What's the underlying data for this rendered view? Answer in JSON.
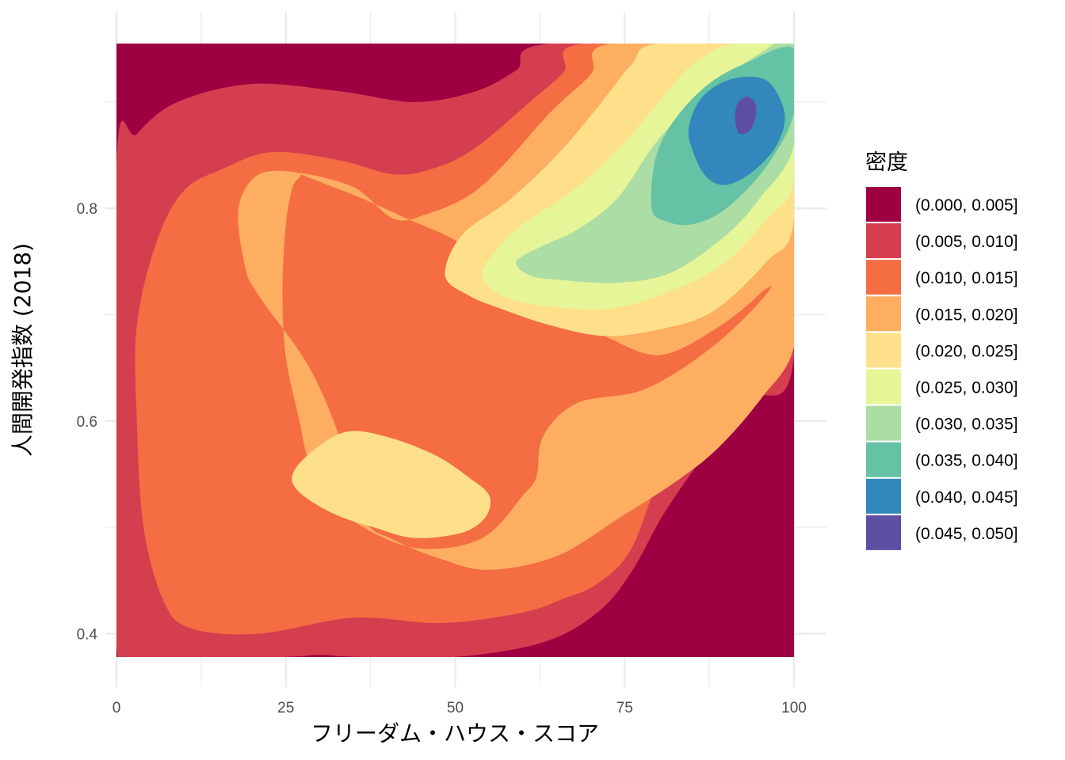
{
  "chart_data": {
    "type": "heatmap",
    "subtype": "filled-density-contour",
    "xlabel": "フリーダム・ハウス・スコア",
    "ylabel": "人間開発指数 (2018)",
    "xlim": [
      0,
      100
    ],
    "ylim": [
      0.378,
      0.955
    ],
    "x_ticks": [
      {
        "value": 0,
        "label": "0"
      },
      {
        "value": 25,
        "label": "25"
      },
      {
        "value": 50,
        "label": "50"
      },
      {
        "value": 75,
        "label": "75"
      },
      {
        "value": 100,
        "label": "100"
      }
    ],
    "y_ticks": [
      {
        "value": 0.4,
        "label": "0.4"
      },
      {
        "value": 0.6,
        "label": "0.6"
      },
      {
        "value": 0.8,
        "label": "0.8"
      }
    ],
    "x_minor_gridlines": [
      12.5,
      37.5,
      62.5,
      87.5
    ],
    "y_minor_gridlines": [
      0.5,
      0.7,
      0.9
    ],
    "grid": true,
    "legend": {
      "title": "密度",
      "position": "right",
      "bins": [
        {
          "label": "(0.000, 0.005]",
          "color": "#9E0142"
        },
        {
          "label": "(0.005, 0.010]",
          "color": "#D53E4F"
        },
        {
          "label": "(0.010, 0.015]",
          "color": "#F46D43"
        },
        {
          "label": "(0.015, 0.020]",
          "color": "#FDAE61"
        },
        {
          "label": "(0.020, 0.025]",
          "color": "#FEE08B"
        },
        {
          "label": "(0.025, 0.030]",
          "color": "#E6F598"
        },
        {
          "label": "(0.030, 0.035]",
          "color": "#ABDDA4"
        },
        {
          "label": "(0.035, 0.040]",
          "color": "#66C2A5"
        },
        {
          "label": "(0.040, 0.045]",
          "color": "#3288BD"
        },
        {
          "label": "(0.045, 0.050]",
          "color": "#5E4FA2"
        }
      ]
    },
    "regions": [
      {
        "level": 0,
        "points": [
          [
            0,
            0.955
          ],
          [
            100,
            0.955
          ],
          [
            100,
            0.378
          ],
          [
            0,
            0.378
          ]
        ]
      },
      {
        "level": 1,
        "points": [
          [
            0,
            0.84
          ],
          [
            3,
            0.87
          ],
          [
            9,
            0.9
          ],
          [
            20,
            0.917
          ],
          [
            33,
            0.91
          ],
          [
            44,
            0.9
          ],
          [
            53,
            0.91
          ],
          [
            59,
            0.93
          ],
          [
            64,
            0.955
          ],
          [
            100,
            0.955
          ],
          [
            100,
            0.66
          ],
          [
            94,
            0.62
          ],
          [
            88,
            0.578
          ],
          [
            81,
            0.515
          ],
          [
            76,
            0.458
          ],
          [
            71,
            0.42
          ],
          [
            63,
            0.392
          ],
          [
            50,
            0.378
          ],
          [
            36,
            0.378
          ],
          [
            30,
            0.38
          ],
          [
            24,
            0.378
          ],
          [
            6,
            0.378
          ],
          [
            0,
            0.39
          ]
        ]
      },
      {
        "level": 2,
        "points": [
          [
            10,
            0.817
          ],
          [
            16,
            0.838
          ],
          [
            23,
            0.853
          ],
          [
            33,
            0.845
          ],
          [
            41,
            0.832
          ],
          [
            47,
            0.838
          ],
          [
            53,
            0.857
          ],
          [
            61,
            0.9
          ],
          [
            66,
            0.928
          ],
          [
            69,
            0.955
          ],
          [
            100,
            0.955
          ],
          [
            100,
            0.715
          ],
          [
            95,
            0.66
          ],
          [
            87,
            0.607
          ],
          [
            81,
            0.56
          ],
          [
            76,
            0.48
          ],
          [
            71,
            0.447
          ],
          [
            66,
            0.433
          ],
          [
            60,
            0.42
          ],
          [
            48,
            0.41
          ],
          [
            35,
            0.415
          ],
          [
            21,
            0.4
          ],
          [
            11,
            0.405
          ],
          [
            7,
            0.43
          ],
          [
            4,
            0.5
          ],
          [
            3,
            0.6
          ],
          [
            3,
            0.69
          ],
          [
            6,
            0.77
          ]
        ]
      },
      {
        "level": 3,
        "points": [
          [
            27,
            0.833
          ],
          [
            21,
            0.832
          ],
          [
            18,
            0.8
          ],
          [
            19,
            0.745
          ],
          [
            21,
            0.718
          ],
          [
            28.5,
            0.65
          ],
          [
            33.5,
            0.575
          ],
          [
            36.5,
            0.508
          ],
          [
            41,
            0.488
          ],
          [
            48,
            0.47
          ],
          [
            55,
            0.46
          ],
          [
            65,
            0.473
          ],
          [
            74,
            0.508
          ],
          [
            83,
            0.545
          ],
          [
            89,
            0.576
          ],
          [
            95,
            0.62
          ],
          [
            100,
            0.67
          ],
          [
            100,
            0.762
          ],
          [
            96,
            0.72
          ],
          [
            88,
            0.67
          ],
          [
            78,
            0.63
          ],
          [
            68,
            0.617
          ],
          [
            63,
            0.586
          ],
          [
            62,
            0.548
          ],
          [
            60,
            0.53
          ],
          [
            54,
            0.49
          ],
          [
            45,
            0.48
          ],
          [
            37,
            0.498
          ],
          [
            30,
            0.533
          ],
          [
            28,
            0.57
          ],
          [
            27,
            0.6
          ],
          [
            25,
            0.66
          ],
          [
            24.5,
            0.722
          ],
          [
            25,
            0.785
          ],
          [
            26,
            0.82
          ]
        ]
      },
      {
        "level": 3,
        "points": [
          [
            27,
            0.833
          ],
          [
            35,
            0.82
          ],
          [
            41,
            0.79
          ],
          [
            46,
            0.795
          ],
          [
            52,
            0.812
          ],
          [
            57,
            0.84
          ],
          [
            64,
            0.89
          ],
          [
            70,
            0.926
          ],
          [
            73,
            0.955
          ],
          [
            100,
            0.955
          ],
          [
            100,
            0.762
          ],
          [
            95,
            0.72
          ],
          [
            88,
            0.685
          ],
          [
            80,
            0.662
          ],
          [
            72,
            0.68
          ],
          [
            64,
            0.705
          ],
          [
            57,
            0.74
          ],
          [
            50,
            0.77
          ],
          [
            43,
            0.79
          ],
          [
            36,
            0.81
          ]
        ]
      },
      {
        "level": 4,
        "points": [
          [
            48.5,
            0.737
          ],
          [
            51,
            0.775
          ],
          [
            58,
            0.808
          ],
          [
            65,
            0.85
          ],
          [
            71,
            0.895
          ],
          [
            76,
            0.935
          ],
          [
            80,
            0.955
          ],
          [
            100,
            0.955
          ],
          [
            100,
            0.79
          ],
          [
            96,
            0.75
          ],
          [
            88,
            0.703
          ],
          [
            80,
            0.686
          ],
          [
            72,
            0.68
          ],
          [
            64,
            0.69
          ],
          [
            57,
            0.705
          ],
          [
            52,
            0.718
          ]
        ]
      },
      {
        "level": 4,
        "points": [
          [
            26,
            0.55
          ],
          [
            29,
            0.572
          ],
          [
            34,
            0.59
          ],
          [
            40,
            0.585
          ],
          [
            47,
            0.568
          ],
          [
            52,
            0.547
          ],
          [
            55,
            0.53
          ],
          [
            54.5,
            0.51
          ],
          [
            51,
            0.495
          ],
          [
            44,
            0.49
          ],
          [
            38,
            0.5
          ],
          [
            32,
            0.513
          ],
          [
            27,
            0.533
          ]
        ]
      },
      {
        "level": 5,
        "points": [
          [
            54,
            0.735
          ],
          [
            56,
            0.76
          ],
          [
            60,
            0.785
          ],
          [
            67,
            0.815
          ],
          [
            74,
            0.855
          ],
          [
            80,
            0.9
          ],
          [
            85,
            0.935
          ],
          [
            91,
            0.955
          ],
          [
            100,
            0.955
          ],
          [
            100,
            0.828
          ],
          [
            96,
            0.79
          ],
          [
            89,
            0.745
          ],
          [
            80,
            0.718
          ],
          [
            73,
            0.706
          ],
          [
            65,
            0.707
          ],
          [
            58,
            0.715
          ]
        ]
      },
      {
        "level": 6,
        "points": [
          [
            59,
            0.75
          ],
          [
            63,
            0.765
          ],
          [
            68,
            0.78
          ],
          [
            74,
            0.81
          ],
          [
            80,
            0.865
          ],
          [
            87,
            0.908
          ],
          [
            95,
            0.946
          ],
          [
            100,
            0.955
          ],
          [
            100,
            0.86
          ],
          [
            95,
            0.81
          ],
          [
            90,
            0.775
          ],
          [
            82,
            0.74
          ],
          [
            74,
            0.73
          ],
          [
            65,
            0.733
          ],
          [
            61,
            0.737
          ]
        ]
      },
      {
        "level": 7,
        "points": [
          [
            79,
            0.8
          ],
          [
            79.5,
            0.845
          ],
          [
            82,
            0.88
          ],
          [
            87,
            0.915
          ],
          [
            93,
            0.937
          ],
          [
            100,
            0.95
          ],
          [
            100,
            0.89
          ],
          [
            96,
            0.84
          ],
          [
            90,
            0.8
          ],
          [
            85,
            0.785
          ],
          [
            81,
            0.788
          ]
        ]
      },
      {
        "level": 8,
        "points": [
          [
            85,
            0.855
          ],
          [
            84.5,
            0.877
          ],
          [
            86.5,
            0.905
          ],
          [
            91,
            0.922
          ],
          [
            96,
            0.92
          ],
          [
            98.6,
            0.89
          ],
          [
            97.5,
            0.86
          ],
          [
            94,
            0.835
          ],
          [
            90,
            0.822
          ],
          [
            87,
            0.83
          ]
        ]
      },
      {
        "level": 9,
        "points": [
          [
            91.3,
            0.889
          ],
          [
            91.8,
            0.9
          ],
          [
            93,
            0.905
          ],
          [
            94.2,
            0.9
          ],
          [
            94.4,
            0.888
          ],
          [
            93.6,
            0.874
          ],
          [
            92.1,
            0.87
          ],
          [
            91.5,
            0.876
          ]
        ]
      }
    ]
  }
}
